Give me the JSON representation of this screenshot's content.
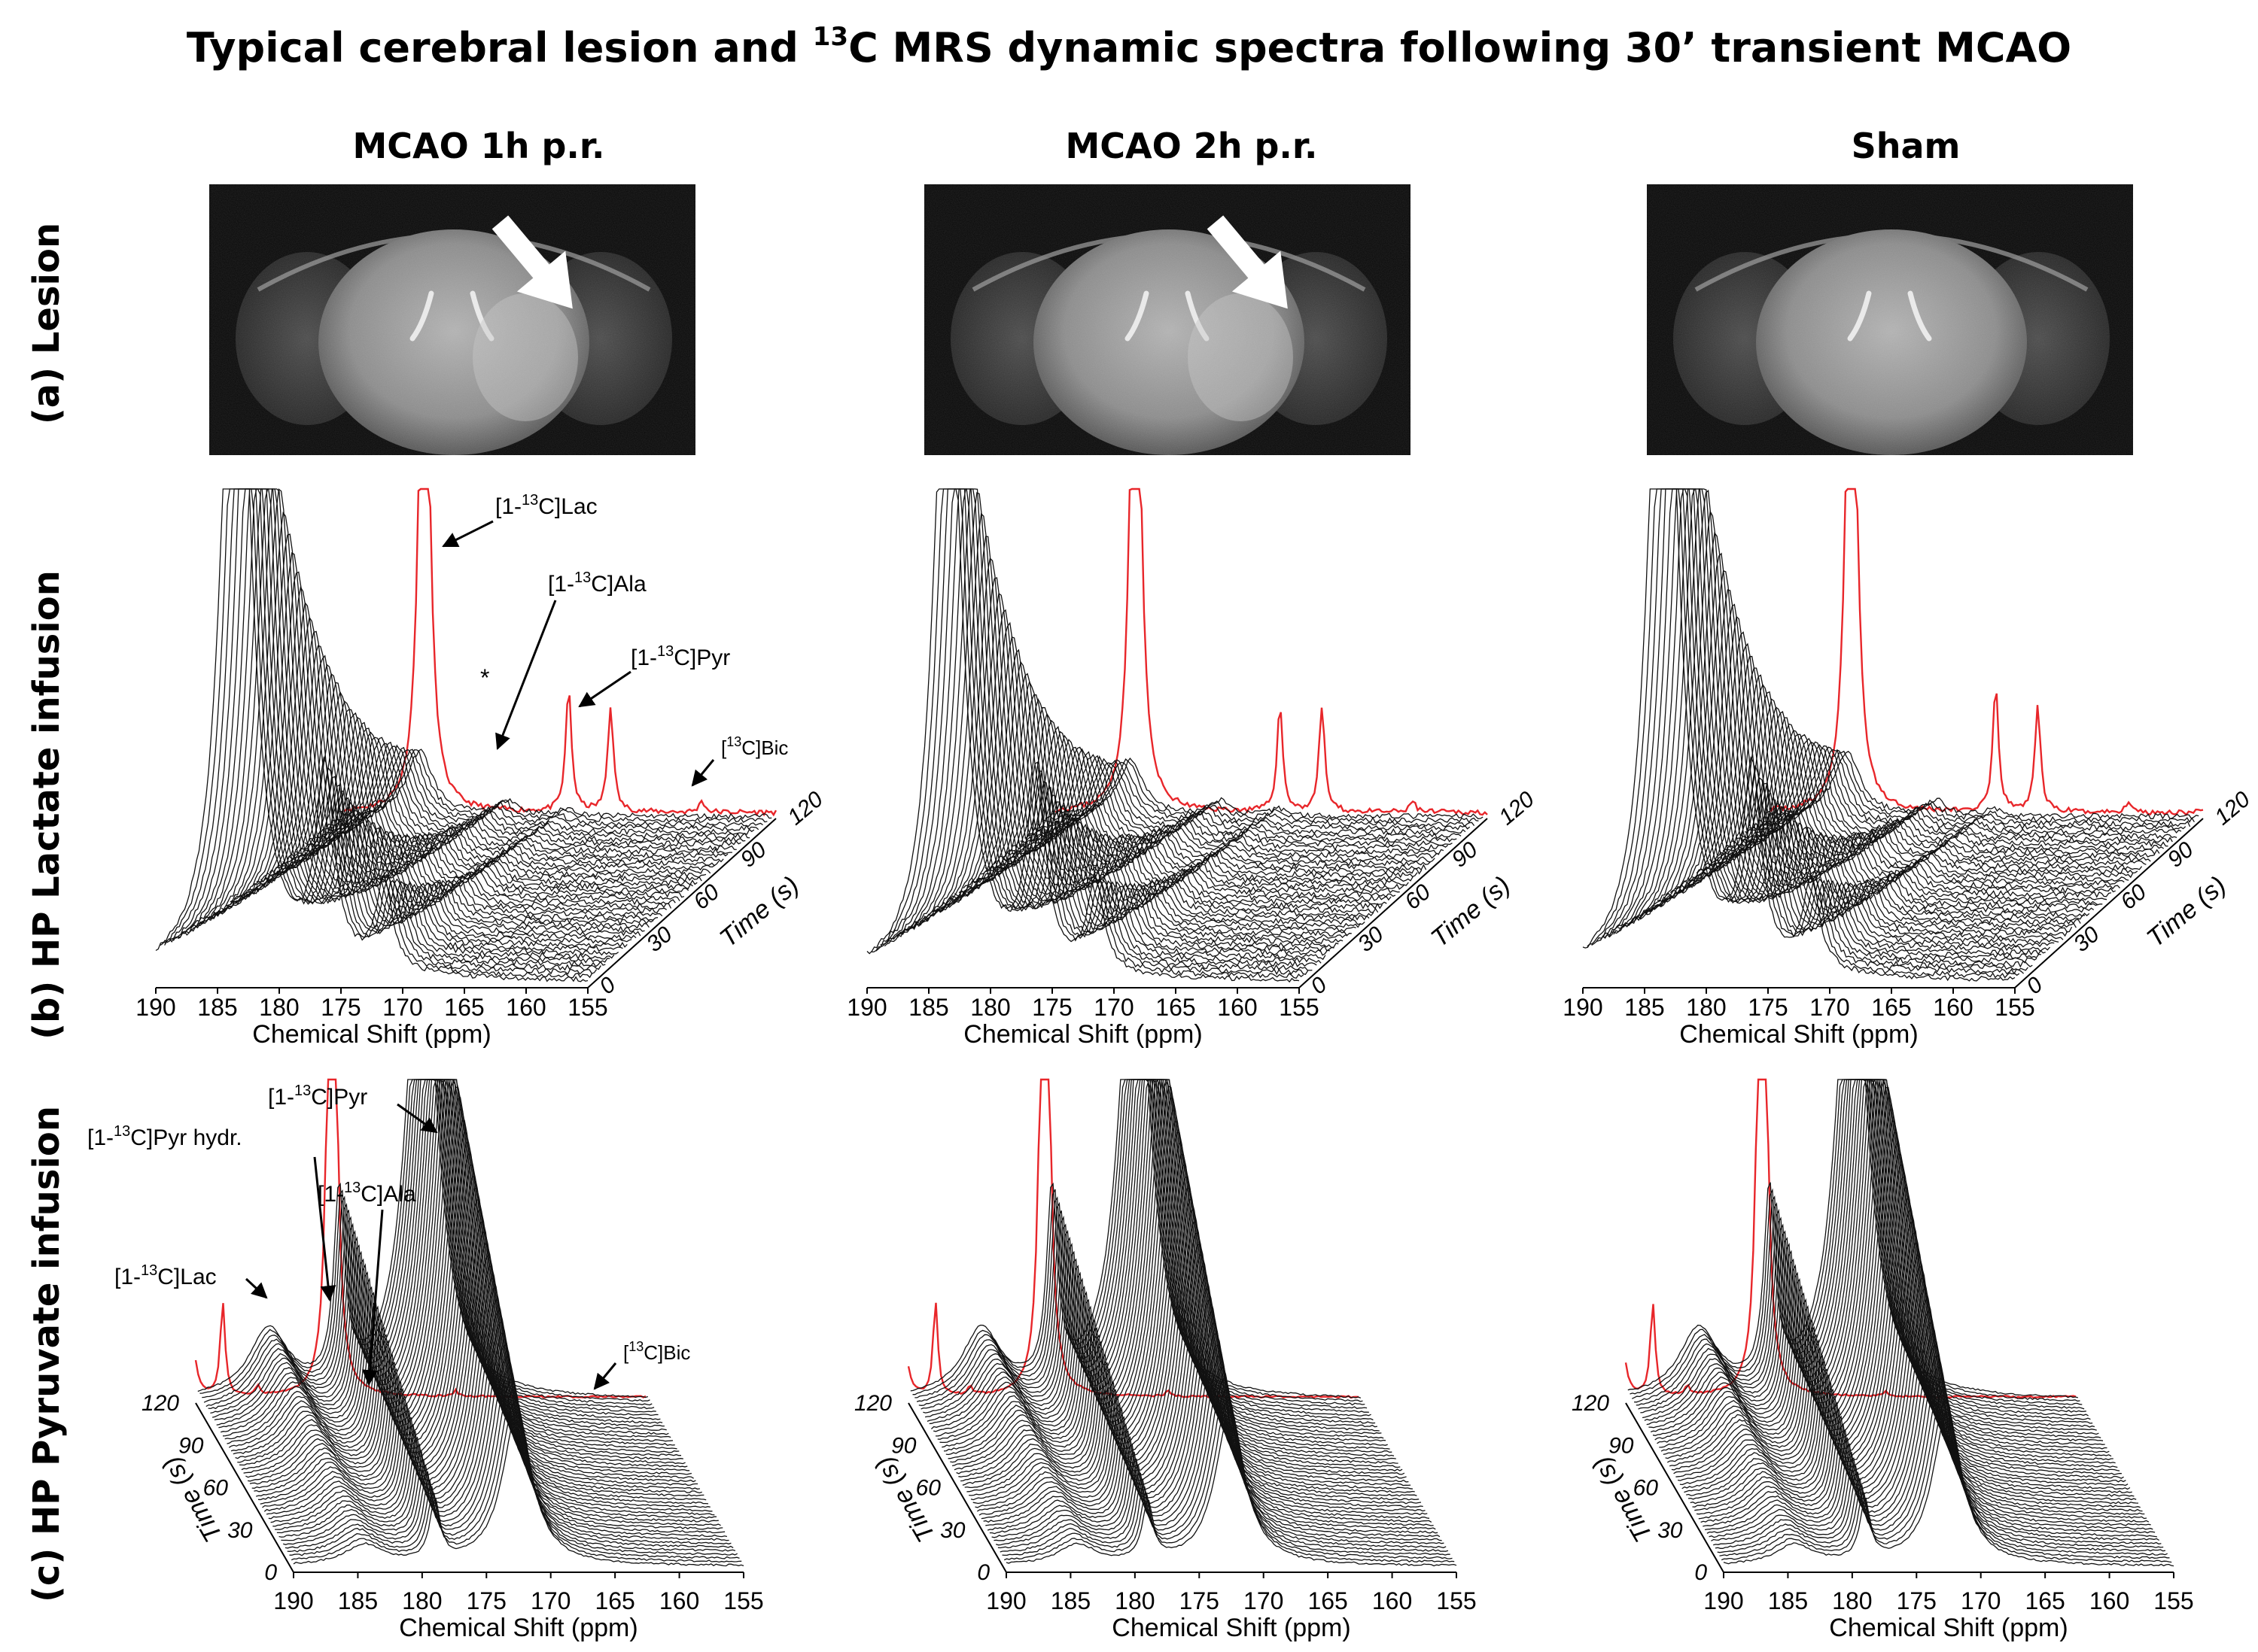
{
  "title": {
    "pre": "Typical cerebral lesion and ",
    "sup": "13",
    "post": "C MRS dynamic spectra following 30’ transient MCAO"
  },
  "columns": [
    "MCAO 1h p.r.",
    "MCAO 2h p.r.",
    "Sham"
  ],
  "rows": [
    "(a) Lesion",
    "(b) HP Lactate infusion",
    "(c) HP Pyruvate infusion"
  ],
  "axes": {
    "x_label": "Chemical Shift (ppm)",
    "time_label": "Time (s)",
    "x_ticks": [
      "190",
      "185",
      "180",
      "175",
      "170",
      "165",
      "160",
      "155"
    ],
    "time_ticks": [
      "0",
      "30",
      "60",
      "90",
      "120"
    ]
  },
  "annotations": {
    "lactate": {
      "lac": [
        "[1-",
        "13",
        "C]Lac"
      ],
      "ala": [
        "[1-",
        "13",
        "C]Ala"
      ],
      "pyr": [
        "[1-",
        "13",
        "C]Pyr"
      ],
      "bic": [
        "[",
        "13",
        "C]Bic"
      ],
      "star": "*"
    },
    "pyruvate": {
      "pyr": [
        "[1-",
        "13",
        "C]Pyr"
      ],
      "hydr": [
        "[1-",
        "13",
        "C]Pyr hydr."
      ],
      "ala": [
        "[1-",
        "13",
        "C]Ala"
      ],
      "lac": [
        "[1-",
        "13",
        "C]Lac"
      ],
      "bic": [
        "[",
        "13",
        "C]Bic"
      ]
    }
  },
  "chart_data": [
    {
      "type": "line",
      "panel": "HP Lactate infusion",
      "xlabel": "Chemical Shift (ppm)",
      "xlim": [
        190,
        155
      ],
      "time_range": [
        0,
        120
      ],
      "columns": [
        "MCAO 1h p.r.",
        "MCAO 2h p.r.",
        "Sham"
      ],
      "peaks_ppm": {
        "[1-13C]Lac": 183.5,
        "*": 171.8,
        "[1-13C]Ala": 176.5,
        "[1-13C]Pyr": 171.0,
        "[13C]Bic": 161.0
      }
    },
    {
      "type": "line",
      "panel": "HP Pyruvate infusion",
      "xlabel": "Chemical Shift (ppm)",
      "xlim": [
        190,
        155
      ],
      "time_range": [
        0,
        120
      ],
      "columns": [
        "MCAO 1h p.r.",
        "MCAO 2h p.r.",
        "Sham"
      ],
      "peaks_ppm": {
        "[1-13C]Lac": 183.4,
        "[1-13C]Ala": 176.6,
        "[1-13C]Pyr": 171.0,
        "[1-13C]Pyr hydr.": 179.4,
        "[13C]Bic": 161.0
      }
    }
  ],
  "colors": {
    "highlight": "#e8262a",
    "trace": "#111111"
  }
}
